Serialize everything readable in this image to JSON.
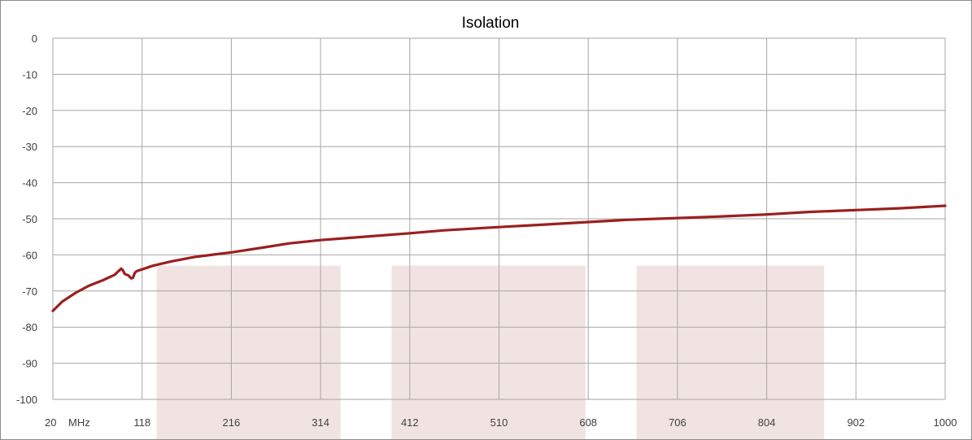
{
  "chart_data": {
    "type": "line",
    "title": "Isolation",
    "xlabel": "",
    "ylabel": "",
    "x_unit_label": "MHz",
    "xlim": [
      20,
      1000
    ],
    "ylim": [
      -100,
      0
    ],
    "x_ticks": [
      20,
      118,
      216,
      314,
      412,
      510,
      608,
      706,
      804,
      902,
      1000
    ],
    "y_ticks": [
      0,
      -10,
      -20,
      -30,
      -40,
      -50,
      -60,
      -70,
      -80,
      -90,
      -100
    ],
    "grid": true,
    "legend": "none",
    "series": [
      {
        "color": "#9b1f1f",
        "points": [
          [
            20,
            -75.5
          ],
          [
            30,
            -73.0
          ],
          [
            45,
            -70.5
          ],
          [
            60,
            -68.5
          ],
          [
            75,
            -67.0
          ],
          [
            88,
            -65.5
          ],
          [
            92,
            -64.5
          ],
          [
            95,
            -63.8
          ],
          [
            97,
            -64.3
          ],
          [
            99,
            -65.3
          ],
          [
            103,
            -65.7
          ],
          [
            106,
            -66.5
          ],
          [
            108,
            -66.3
          ],
          [
            110,
            -65.0
          ],
          [
            112,
            -64.5
          ],
          [
            118,
            -64.0
          ],
          [
            130,
            -63.0
          ],
          [
            150,
            -61.8
          ],
          [
            175,
            -60.6
          ],
          [
            200,
            -59.8
          ],
          [
            216,
            -59.3
          ],
          [
            250,
            -58.0
          ],
          [
            280,
            -56.8
          ],
          [
            314,
            -55.9
          ],
          [
            350,
            -55.2
          ],
          [
            412,
            -54.0
          ],
          [
            450,
            -53.2
          ],
          [
            510,
            -52.3
          ],
          [
            560,
            -51.6
          ],
          [
            608,
            -50.9
          ],
          [
            650,
            -50.3
          ],
          [
            706,
            -49.8
          ],
          [
            750,
            -49.4
          ],
          [
            804,
            -48.8
          ],
          [
            850,
            -48.1
          ],
          [
            902,
            -47.6
          ],
          [
            950,
            -47.1
          ],
          [
            1000,
            -46.4
          ]
        ]
      }
    ],
    "shaded_bands": [
      {
        "x_start": 134,
        "x_end": 336,
        "y_top": -63
      },
      {
        "x_start": 392,
        "x_end": 605,
        "y_top": -63
      },
      {
        "x_start": 661,
        "x_end": 867,
        "y_top": -63
      }
    ],
    "colors": {
      "grid": "#a6a6a6",
      "axis": "#8c8c8c",
      "band": "#f2e3e3",
      "line": "#9b1f1f"
    }
  }
}
